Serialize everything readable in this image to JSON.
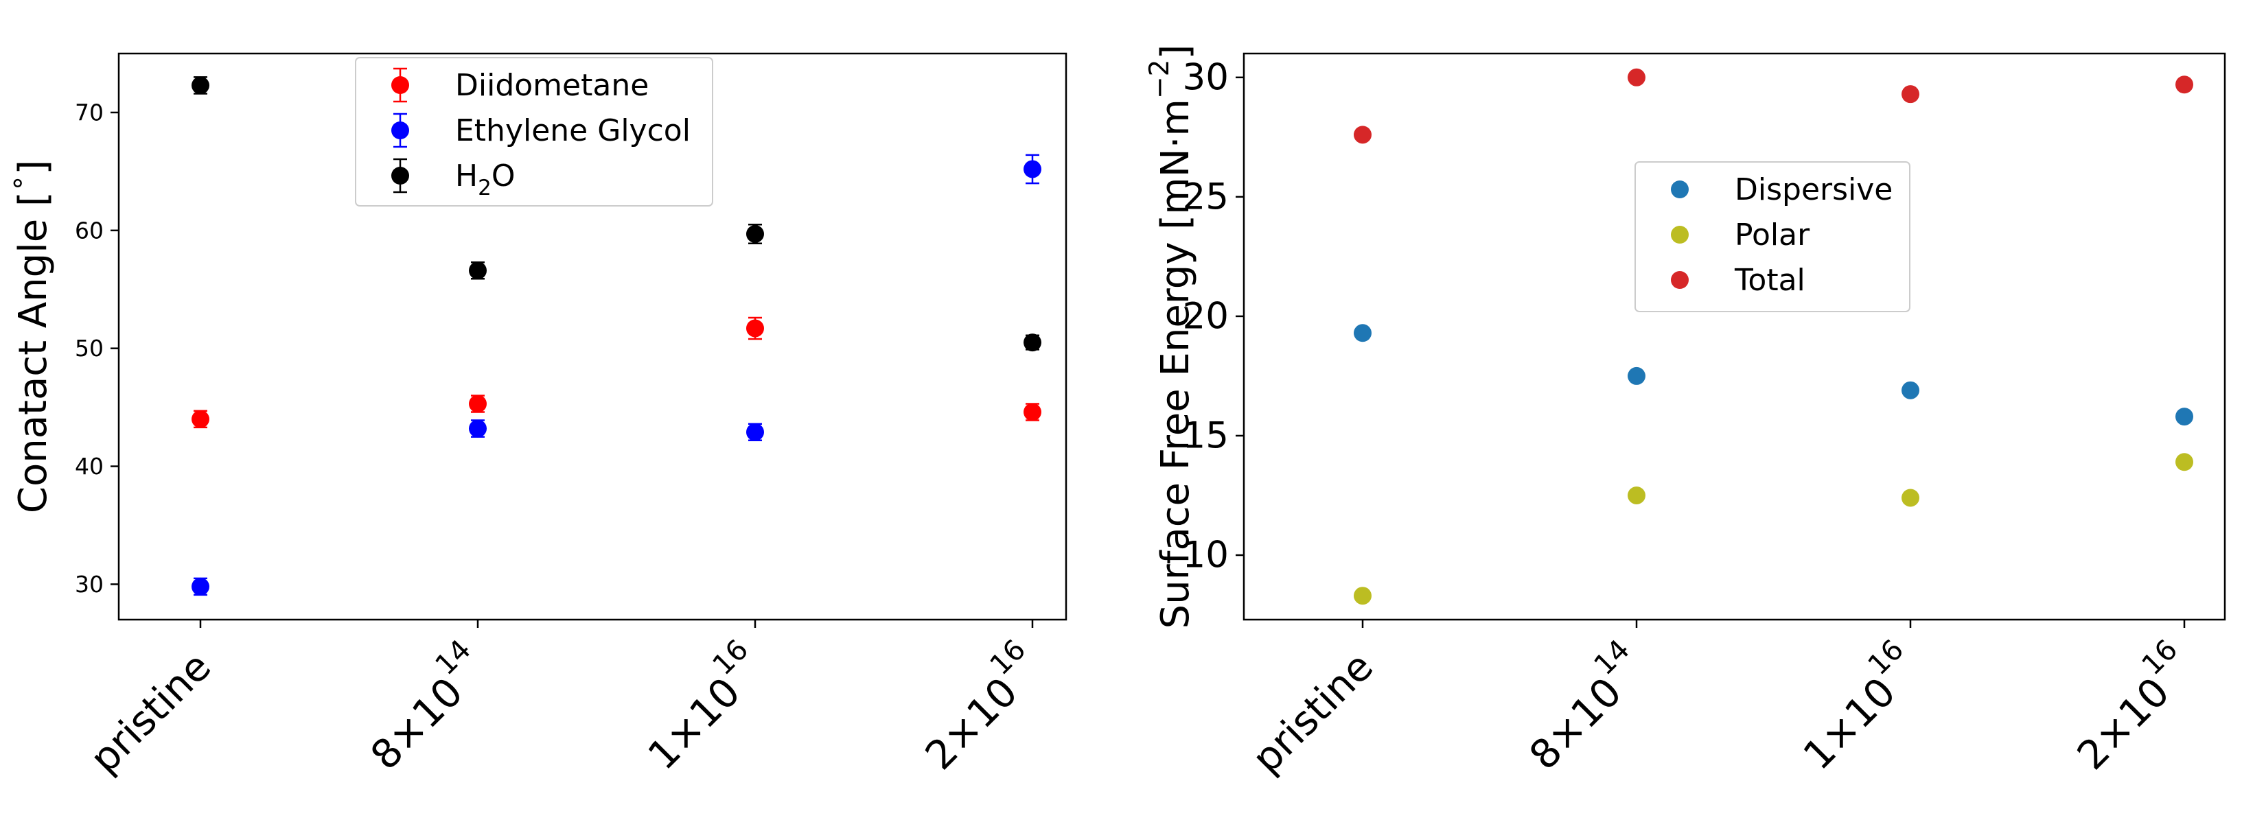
{
  "chart_data": [
    {
      "type": "scatter",
      "ylabel": "Conatact Angle [$^\\circ$]",
      "ylabel_parts": {
        "main": "Conatact Angle [",
        "sup": "∘",
        "end": "]"
      },
      "ylim": [
        27,
        75
      ],
      "yticks": [
        30,
        40,
        50,
        60,
        70
      ],
      "grid": false,
      "legend_position": "upper center",
      "categories": [
        {
          "label": "pristine",
          "mant": "",
          "exp": ""
        },
        {
          "label": "8×10^14",
          "mant": "8×10",
          "exp": "14"
        },
        {
          "label": "1×10^16",
          "mant": "1×10",
          "exp": "16"
        },
        {
          "label": "2×10^16",
          "mant": "2×10",
          "exp": "16"
        }
      ],
      "series": [
        {
          "name": "Diidometane",
          "color": "#ff0000",
          "values": [
            44.0,
            45.3,
            51.7,
            44.6
          ],
          "errors": [
            0.7,
            0.7,
            0.9,
            0.7
          ]
        },
        {
          "name": "Ethylene Glycol",
          "color": "#0000ff",
          "values": [
            29.8,
            43.2,
            42.9,
            65.2
          ],
          "errors": [
            0.7,
            0.7,
            0.7,
            1.2
          ]
        },
        {
          "name": "H2O",
          "name_parts": {
            "main": "H",
            "sub": "2",
            "end": "O"
          },
          "color": "#000000",
          "values": [
            72.3,
            56.6,
            59.7,
            50.5
          ],
          "errors": [
            0.7,
            0.7,
            0.8,
            0.6
          ]
        }
      ]
    },
    {
      "type": "scatter",
      "ylabel": "Surface Free Energy [mN·m^-2]",
      "ylabel_parts": {
        "main": "Surface Free Energy [mN·m",
        "sup": "−2",
        "end": "]"
      },
      "ylim": [
        7.3,
        31
      ],
      "yticks": [
        10,
        15,
        20,
        25,
        30
      ],
      "grid": false,
      "legend_position": "center",
      "categories": [
        {
          "label": "pristine",
          "mant": "",
          "exp": ""
        },
        {
          "label": "8×10^14",
          "mant": "8×10",
          "exp": "14"
        },
        {
          "label": "1×10^16",
          "mant": "1×10",
          "exp": "16"
        },
        {
          "label": "2×10^16",
          "mant": "2×10",
          "exp": "16"
        }
      ],
      "series": [
        {
          "name": "Dispersive",
          "color": "#1f77b4",
          "values": [
            19.3,
            17.5,
            16.9,
            15.8
          ]
        },
        {
          "name": "Polar",
          "color": "#bcbd22",
          "values": [
            8.3,
            12.5,
            12.4,
            13.9
          ]
        },
        {
          "name": "Total",
          "color": "#d62728",
          "values": [
            27.6,
            30.0,
            29.3,
            29.7
          ]
        }
      ]
    }
  ]
}
